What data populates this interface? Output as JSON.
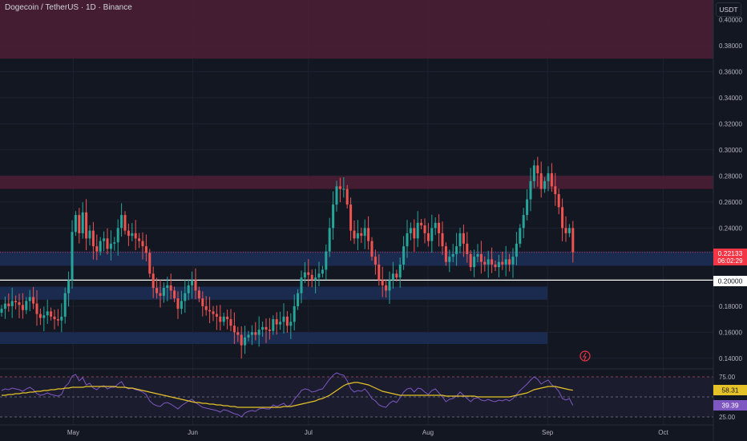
{
  "header": {
    "title": "Dogecoin / TetherUS · 1D · Binance",
    "currency_button": "USDT"
  },
  "colors": {
    "background": "#131722",
    "up": "#26a69a",
    "down": "#ef5350",
    "resistance_zone": "#4a1e34",
    "support_zone": "#1b2b52",
    "rsi_line": "#7e57c2",
    "rsi_ma": "#e6c229",
    "price_label": "#f23645"
  },
  "price_badge": {
    "value": "0.22133",
    "countdown": "06:02:29"
  },
  "level_badge": {
    "value": "0.20000"
  },
  "rsi_badges": {
    "ma": "58.31",
    "rsi": "39.39"
  },
  "chart_data": {
    "type": "candlestick",
    "ylim": [
      0.135,
      0.415
    ],
    "y_ticks": [
      "0.40000",
      "0.38000",
      "0.36000",
      "0.34000",
      "0.32000",
      "0.30000",
      "0.28000",
      "0.26000",
      "0.24000",
      "0.18000",
      "0.16000",
      "0.14000"
    ],
    "x_ticks": [
      {
        "label": "May",
        "x": "2024-05-01"
      },
      {
        "label": "Jun",
        "x": "2024-06-01"
      },
      {
        "label": "Jul",
        "x": "2024-07-01"
      },
      {
        "label": "Aug",
        "x": "2024-08-01"
      },
      {
        "label": "Sep",
        "x": "2024-09-01"
      },
      {
        "label": "Oct",
        "x": "2024-10-01"
      }
    ],
    "date_range": [
      "2024-04-12",
      "2024-10-14"
    ],
    "resistance_zones": [
      [
        0.37,
        0.415
      ],
      [
        0.27,
        0.28
      ]
    ],
    "support_zones": [
      [
        0.211,
        0.222,
        "2024-04-12",
        "2024-10-14"
      ],
      [
        0.185,
        0.195,
        "2024-04-12",
        "2024-09-01"
      ],
      [
        0.151,
        0.16,
        "2024-04-12",
        "2024-09-01"
      ]
    ],
    "horizontal_line": 0.2,
    "last_price": 0.22133,
    "closes": [
      0.178,
      0.182,
      0.18,
      0.184,
      0.183,
      0.181,
      0.177,
      0.184,
      0.187,
      0.182,
      0.174,
      0.171,
      0.173,
      0.176,
      0.172,
      0.17,
      0.169,
      0.172,
      0.19,
      0.2,
      0.237,
      0.25,
      0.236,
      0.252,
      0.232,
      0.238,
      0.226,
      0.222,
      0.23,
      0.232,
      0.224,
      0.228,
      0.229,
      0.24,
      0.25,
      0.238,
      0.234,
      0.236,
      0.232,
      0.23,
      0.226,
      0.221,
      0.205,
      0.194,
      0.19,
      0.188,
      0.194,
      0.196,
      0.192,
      0.186,
      0.178,
      0.184,
      0.19,
      0.196,
      0.2,
      0.192,
      0.186,
      0.18,
      0.177,
      0.176,
      0.174,
      0.172,
      0.168,
      0.172,
      0.17,
      0.165,
      0.16,
      0.158,
      0.15,
      0.156,
      0.158,
      0.16,
      0.158,
      0.162,
      0.164,
      0.162,
      0.161,
      0.17,
      0.166,
      0.168,
      0.172,
      0.165,
      0.168,
      0.18,
      0.19,
      0.202,
      0.206,
      0.204,
      0.2,
      0.202,
      0.205,
      0.208,
      0.222,
      0.24,
      0.258,
      0.272,
      0.27,
      0.27,
      0.258,
      0.238,
      0.232,
      0.236,
      0.234,
      0.24,
      0.23,
      0.218,
      0.212,
      0.2,
      0.196,
      0.192,
      0.2,
      0.205,
      0.202,
      0.212,
      0.226,
      0.236,
      0.24,
      0.232,
      0.244,
      0.242,
      0.236,
      0.23,
      0.24,
      0.244,
      0.236,
      0.226,
      0.214,
      0.218,
      0.22,
      0.226,
      0.236,
      0.228,
      0.22,
      0.21,
      0.218,
      0.22,
      0.214,
      0.212,
      0.216,
      0.212,
      0.21,
      0.214,
      0.212,
      0.216,
      0.212,
      0.218,
      0.228,
      0.24,
      0.25,
      0.262,
      0.276,
      0.288,
      0.282,
      0.27,
      0.276,
      0.282,
      0.272,
      0.266,
      0.256,
      0.24,
      0.236,
      0.24,
      0.22133
    ],
    "rsi": {
      "levels": [
        75,
        50,
        25
      ],
      "ylim": [
        20,
        80
      ],
      "values": [
        58,
        60,
        59,
        61,
        60,
        59,
        57,
        60,
        62,
        59,
        54,
        52,
        53,
        55,
        53,
        52,
        51,
        53,
        63,
        67,
        76,
        78,
        70,
        74,
        65,
        67,
        61,
        59,
        63,
        64,
        60,
        62,
        62,
        66,
        69,
        62,
        60,
        61,
        59,
        58,
        56,
        53,
        45,
        41,
        39,
        38,
        42,
        43,
        41,
        38,
        35,
        39,
        42,
        45,
        47,
        43,
        40,
        37,
        36,
        35,
        34,
        33,
        31,
        34,
        33,
        31,
        29,
        28,
        25,
        30,
        32,
        33,
        32,
        35,
        36,
        35,
        35,
        40,
        38,
        40,
        42,
        38,
        40,
        47,
        52,
        58,
        60,
        59,
        56,
        57,
        59,
        60,
        66,
        72,
        77,
        80,
        78,
        77,
        70,
        60,
        56,
        58,
        57,
        60,
        55,
        48,
        45,
        40,
        38,
        37,
        42,
        45,
        43,
        49,
        56,
        60,
        61,
        56,
        61,
        60,
        56,
        53,
        58,
        60,
        55,
        50,
        44,
        47,
        48,
        51,
        56,
        52,
        48,
        44,
        48,
        49,
        46,
        45,
        47,
        45,
        44,
        46,
        45,
        47,
        45,
        48,
        53,
        58,
        62,
        66,
        71,
        75,
        72,
        66,
        69,
        71,
        65,
        62,
        57,
        48,
        46,
        48,
        39.39
      ],
      "ma": [
        52,
        52,
        53,
        53,
        54,
        54,
        55,
        55,
        56,
        56,
        57,
        57,
        58,
        58,
        59,
        59,
        60,
        60,
        61,
        61,
        62,
        62,
        62,
        62,
        63,
        63,
        63,
        63,
        63,
        63,
        63,
        63,
        63,
        62,
        62,
        62,
        61,
        61,
        60,
        59,
        58,
        57,
        56,
        55,
        54,
        53,
        52,
        51,
        50,
        49,
        48,
        47,
        46,
        45,
        44,
        43,
        43,
        42,
        42,
        41,
        41,
        40,
        40,
        39,
        39,
        38,
        38,
        37,
        37,
        37,
        37,
        37,
        37,
        37,
        37,
        37,
        37,
        37,
        37,
        37,
        38,
        38,
        38,
        39,
        40,
        41,
        42,
        43,
        44,
        45,
        47,
        48,
        50,
        52,
        55,
        58,
        61,
        64,
        66,
        67,
        68,
        68,
        67,
        66,
        65,
        63,
        61,
        59,
        57,
        56,
        55,
        54,
        53,
        52,
        52,
        52,
        52,
        52,
        52,
        52,
        52,
        52,
        52,
        52,
        52,
        52,
        51,
        51,
        51,
        51,
        51,
        51,
        51,
        51,
        51,
        50,
        50,
        50,
        50,
        50,
        50,
        50,
        50,
        50,
        50,
        51,
        52,
        53,
        54,
        55,
        57,
        59,
        60,
        61,
        62,
        63,
        63,
        63,
        62,
        61,
        60,
        59,
        58.31
      ]
    }
  }
}
